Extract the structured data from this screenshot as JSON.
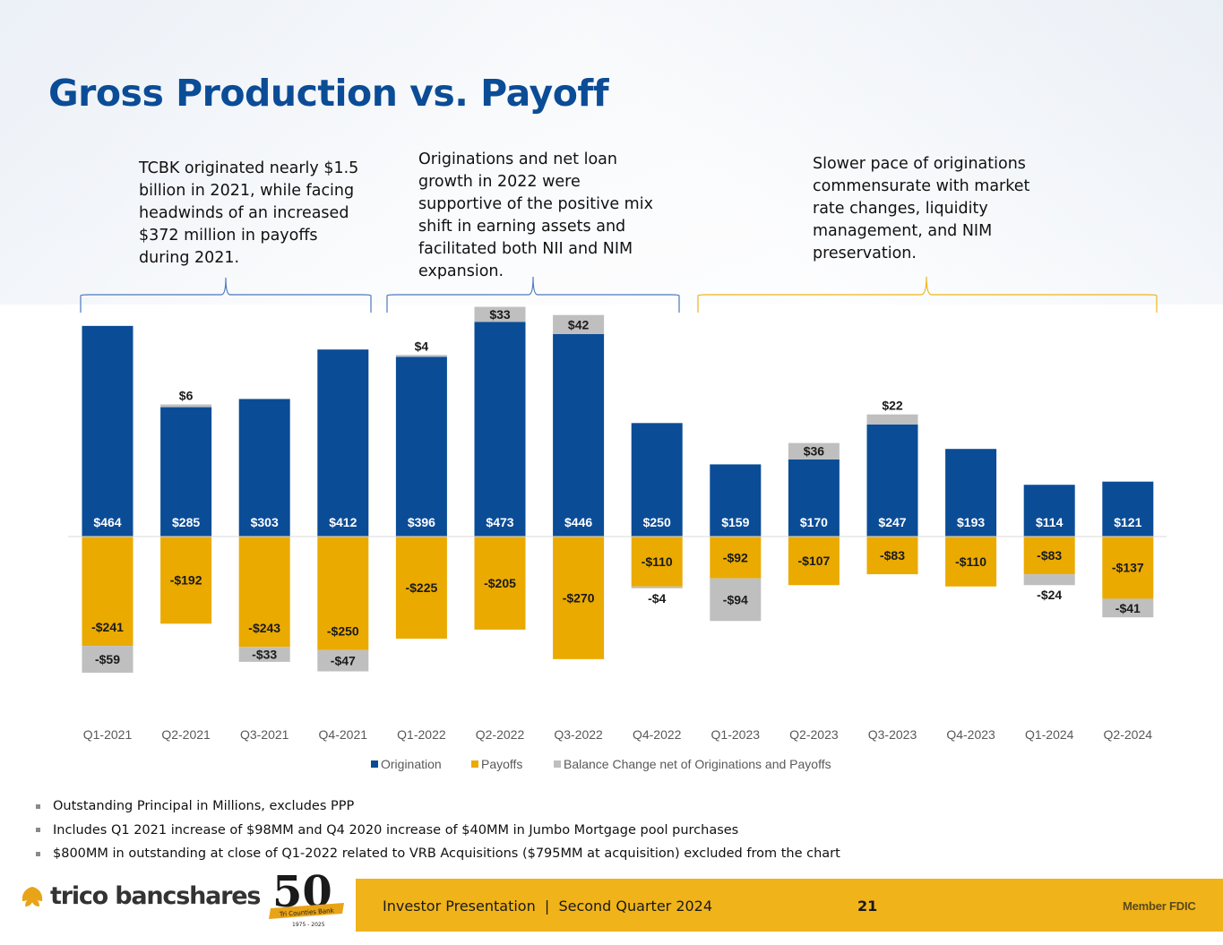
{
  "title": "Gross Production vs. Payoff",
  "callouts": [
    "TCBK originated nearly $1.5 billion in 2021, while facing headwinds of an increased $372 million in payoffs during 2021.",
    "Originations and net loan growth in 2022 were supportive of the positive mix shift in earning assets and facilitated both NII and NIM expansion.",
    "Slower pace of originations commensurate with market rate changes, liquidity management, and NIM preservation."
  ],
  "notes": [
    "Outstanding Principal in Millions, excludes PPP",
    "Includes Q1 2021 increase of $98MM and Q4 2020 increase of $40MM in Jumbo Mortgage pool purchases",
    "$800MM in outstanding at close of Q1-2022 related to VRB Acquisitions ($795MM at acquisition) excluded from the chart"
  ],
  "footer": {
    "presentation": "Investor Presentation  |  Second Quarter 2024",
    "page_number": "21",
    "member": "Member FDIC",
    "logo_text": "trico bancshares",
    "badge_text": "50",
    "badge_banner": "Tri Counties Bank",
    "badge_years": "1975 - 2025"
  },
  "colors": {
    "title": "#0b4c96",
    "origination": "#0b4c96",
    "payoffs": "#eaaa00",
    "balance": "#bfbfbf",
    "bracket_blue": "#4a78c0",
    "bracket_gold": "#f0b31a",
    "footer_band": "#f0b31a"
  },
  "chart_data": {
    "type": "bar",
    "stacked": true,
    "categories": [
      "Q1-2021",
      "Q2-2021",
      "Q3-2021",
      "Q4-2021",
      "Q1-2022",
      "Q2-2022",
      "Q3-2022",
      "Q4-2022",
      "Q1-2023",
      "Q2-2023",
      "Q3-2023",
      "Q4-2023",
      "Q1-2024",
      "Q2-2024"
    ],
    "series": [
      {
        "name": "Origination",
        "values": [
          464,
          285,
          303,
          412,
          396,
          473,
          446,
          250,
          159,
          170,
          247,
          193,
          114,
          121
        ],
        "labels": [
          "$464",
          "$285",
          "$303",
          "$412",
          "$396",
          "$473",
          "$446",
          "$250",
          "$159",
          "$170",
          "$247",
          "$193",
          "$114",
          "$121"
        ]
      },
      {
        "name": "Payoffs",
        "values": [
          -241,
          -192,
          -243,
          -250,
          -225,
          -205,
          -270,
          -110,
          -92,
          -107,
          -83,
          -110,
          -83,
          -137
        ],
        "labels": [
          "-$241",
          "-$192",
          "-$243",
          "-$250",
          "-$225",
          "-$205",
          "-$270",
          "-$110",
          "-$92",
          "-$107",
          "-$83",
          "-$110",
          "-$83",
          "-$137"
        ]
      },
      {
        "name": "Balance Change net of Originations and Payoffs",
        "values": [
          -59,
          6,
          -33,
          -47,
          4,
          33,
          42,
          -4,
          -94,
          36,
          22,
          null,
          -24,
          -41
        ],
        "labels": [
          "-$59",
          "$6",
          "-$33",
          "-$47",
          "$4",
          "$33",
          "$42",
          "-$4",
          "-$94",
          "$36",
          "$22",
          null,
          "-$24",
          "-$41"
        ]
      }
    ],
    "legend_position": "bottom",
    "ylim": [
      -310,
      480
    ],
    "grid": false
  }
}
